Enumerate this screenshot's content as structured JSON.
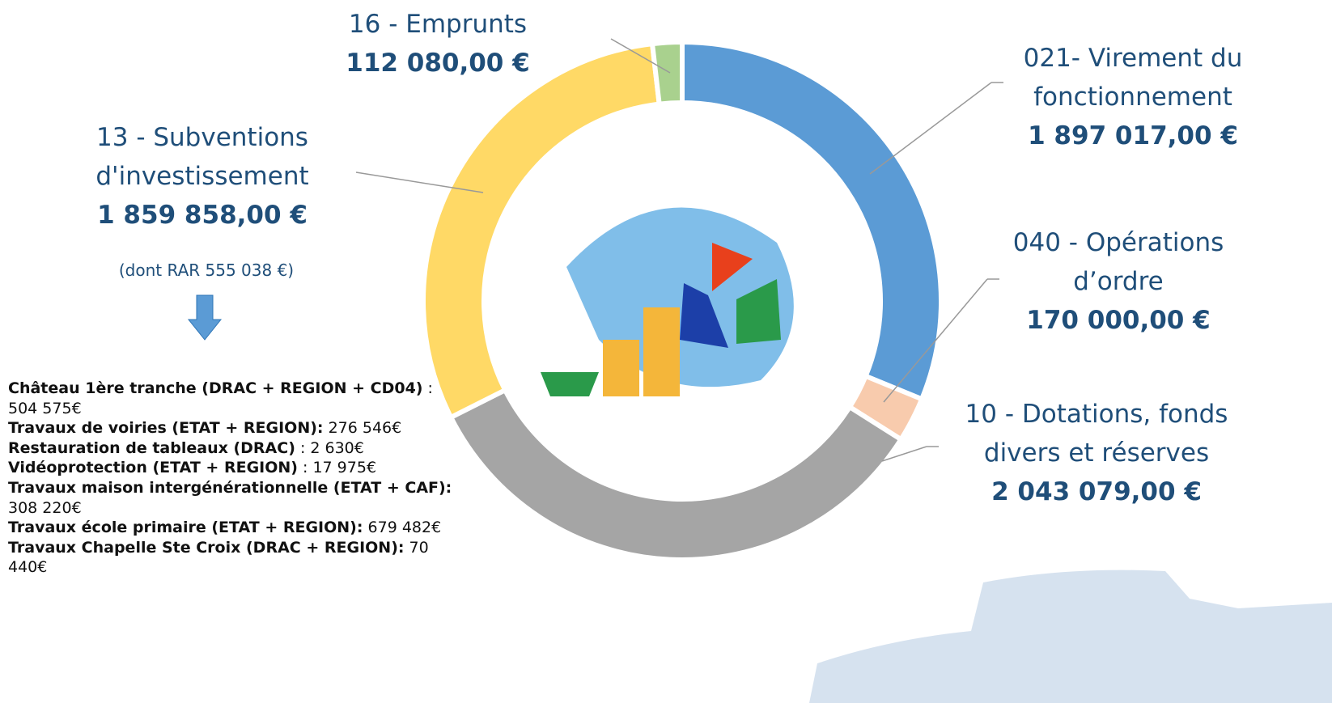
{
  "chart_data": {
    "type": "donut",
    "categories": [
      "021- Virement du fonctionnement",
      "040 - Opérations d’ordre",
      "10 - Dotations, fonds divers et réserves",
      "13 - Subventions d'investissement",
      "16 - Emprunts"
    ],
    "values": [
      1897017,
      170000,
      2043079,
      1859858,
      112080
    ],
    "value_labels": [
      "1 897 017,00 €",
      "170 000,00 €",
      "2 043 079,00 €",
      "1 859 858,00 €",
      "112 080,00 €"
    ],
    "colors": [
      "#5b9bd5",
      "#f8cbad",
      "#a5a5a5",
      "#ffd966",
      "#a9d18e"
    ],
    "note": "(dont RAR 555 038 €)",
    "details": [
      {
        "label": "Château 1ère tranche (DRAC + REGION + CD04)",
        "amount": ": 504 575€"
      },
      {
        "label": "Travaux de voiries (ETAT + REGION):",
        "amount": "276 546€"
      },
      {
        "label": "Restauration de tableaux (DRAC)",
        "amount": ": 2 630€"
      },
      {
        "label": "Vidéoprotection (ETAT + REGION)",
        "amount": ": 17 975€"
      },
      {
        "label": "Travaux maison intergénérationnelle (ETAT + CAF):",
        "amount": "308 220€"
      },
      {
        "label": "Travaux école primaire (ETAT + REGION):",
        "amount": "679 482€"
      },
      {
        "label": "Travaux Chapelle Ste Croix (DRAC + REGION):",
        "amount": "70 440€"
      }
    ]
  }
}
